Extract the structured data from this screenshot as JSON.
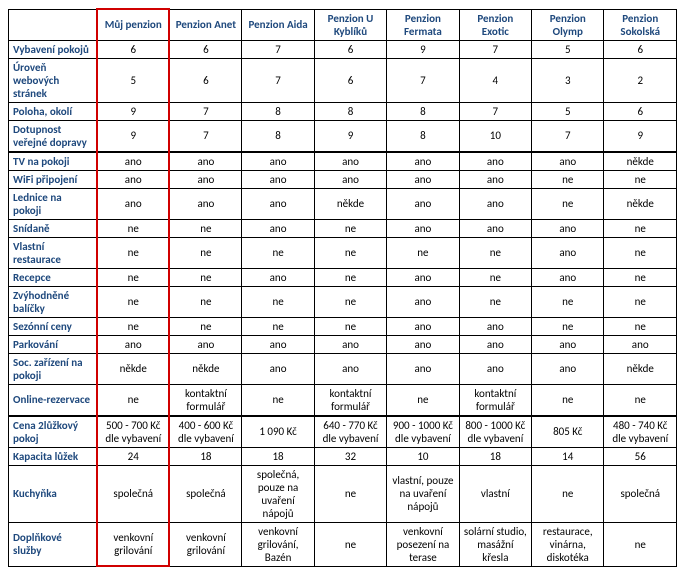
{
  "columns": [
    "",
    "Můj penzion",
    "Penzion Anet",
    "Penzion Aida",
    "Penzion U Kyblíků",
    "Penzion Fermata",
    "Penzion Exotic",
    "Penzion Olymp",
    "Penzion Sokolská"
  ],
  "sections": [
    {
      "rows": [
        {
          "label": "Vybavení pokojů",
          "cells": [
            "6",
            "6",
            "7",
            "6",
            "9",
            "7",
            "5",
            "6"
          ]
        },
        {
          "label": "Úroveň webových stránek",
          "cells": [
            "5",
            "6",
            "7",
            "6",
            "7",
            "4",
            "3",
            "2"
          ]
        },
        {
          "label": "Poloha, okolí",
          "cells": [
            "9",
            "7",
            "8",
            "8",
            "8",
            "7",
            "5",
            "6"
          ]
        },
        {
          "label": "Dotupnost veřejné dopravy",
          "cells": [
            "9",
            "7",
            "8",
            "9",
            "8",
            "10",
            "7",
            "9"
          ]
        }
      ]
    },
    {
      "rows": [
        {
          "label": "TV na pokoji",
          "cells": [
            "ano",
            "ano",
            "ano",
            "ano",
            "ano",
            "ano",
            "ano",
            "někde"
          ]
        },
        {
          "label": "WiFi připojení",
          "cells": [
            "ano",
            "ano",
            "ano",
            "ano",
            "ano",
            "ano",
            "ne",
            "ne"
          ]
        },
        {
          "label": "Lednice na pokoji",
          "cells": [
            "ano",
            "ano",
            "ano",
            "někde",
            "ano",
            "ano",
            "ne",
            "někde"
          ]
        },
        {
          "label": "Snídaně",
          "cells": [
            "ne",
            "ne",
            "ano",
            "ne",
            "ano",
            "ano",
            "ano",
            "ne"
          ]
        },
        {
          "label": "Vlastní restaurace",
          "cells": [
            "ne",
            "ne",
            "ne",
            "ne",
            "ne",
            "ne",
            "ano",
            "ne"
          ]
        },
        {
          "label": "Recepce",
          "cells": [
            "ne",
            "ne",
            "ano",
            "ne",
            "ano",
            "ne",
            "ano",
            "ne"
          ]
        },
        {
          "label": "Zvýhodněné balíčky",
          "cells": [
            "ne",
            "ne",
            "ne",
            "ne",
            "ano",
            "ne",
            "ne",
            "ne"
          ]
        },
        {
          "label": "Sezónní ceny",
          "cells": [
            "ne",
            "ne",
            "ne",
            "ne",
            "ano",
            "ano",
            "ne",
            "ne"
          ]
        },
        {
          "label": "Parkování",
          "cells": [
            "ano",
            "ano",
            "ano",
            "ano",
            "ano",
            "ano",
            "ano",
            "ano"
          ]
        },
        {
          "label": "Soc. zařízení na pokoji",
          "cells": [
            "někde",
            "někde",
            "ano",
            "ano",
            "ano",
            "ano",
            "ano",
            "někde"
          ]
        },
        {
          "label": "Online-rezervace",
          "cells": [
            "ne",
            "kontaktní formulář",
            "ne",
            "kontaktní formulář",
            "ne",
            "kontaktní formulář",
            "ne",
            "ne"
          ]
        }
      ]
    },
    {
      "rows": [
        {
          "label": "Cena 2lůžkový pokoj",
          "cells": [
            "500 - 700 Kč dle vybavení",
            "400 - 600 Kč dle vybavení",
            "1 090 Kč",
            "640 - 770 Kč dle vybavení",
            "900 - 1000 Kč dle vybavení",
            "800 - 1000 Kč dle vybavení",
            "805 Kč",
            "480 - 740 Kč dle vybavení"
          ]
        },
        {
          "label": "Kapacita lůžek",
          "cells": [
            "24",
            "18",
            "18",
            "32",
            "10",
            "18",
            "14",
            "56"
          ]
        },
        {
          "label": "Kuchyňka",
          "cells": [
            "společná",
            "společná",
            "společná, pouze na uvaření nápojů",
            "ne",
            "vlastní, pouze na uvaření nápojů",
            "vlastní",
            "ne",
            "společná"
          ]
        },
        {
          "label": "Doplňkové služby",
          "cells": [
            "venkovní grilování",
            "venkovní grilování",
            "venkovní grilování, Bazén",
            "ne",
            "venkovní posezení na terase",
            "solární studio, masážní křesla",
            "restaurace, vinárna, diskotéka",
            "ne"
          ]
        }
      ]
    }
  ],
  "highlightColumnIndex": 1,
  "style": {
    "headerColor": "#1f497d",
    "highlightColor": "#d00000",
    "fontSize": 11
  }
}
